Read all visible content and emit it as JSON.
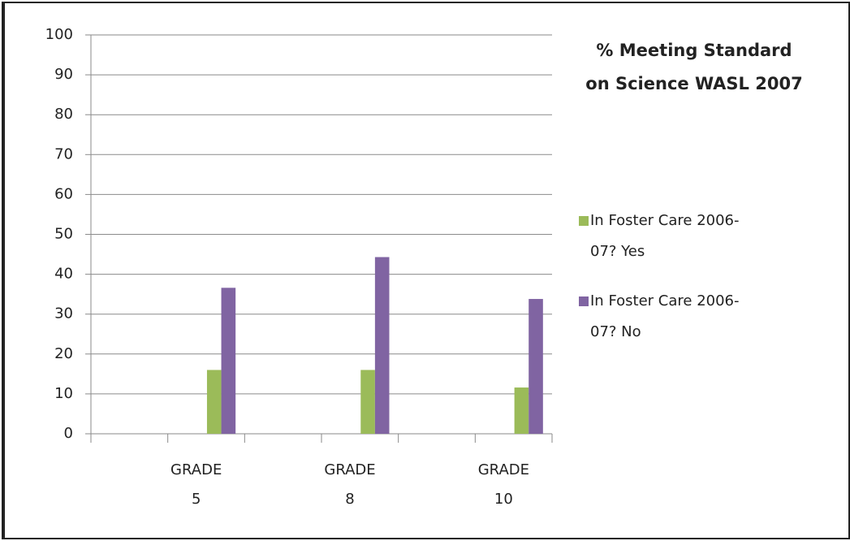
{
  "chart_data": {
    "type": "bar",
    "title": "% Meeting Standard on Science WASL 2007",
    "categories": [
      "GRADE 5",
      "GRADE 8",
      "GRADE 10"
    ],
    "series": [
      {
        "name": "In Foster Care 2006-07? Yes",
        "color": "#9bbb59",
        "values": [
          16,
          16,
          11.6
        ]
      },
      {
        "name": "In Foster Care 2006-07? No",
        "color": "#8064a2",
        "values": [
          36.6,
          44.3,
          33.8
        ]
      }
    ],
    "ylim": [
      0,
      100
    ],
    "yticks": [
      0,
      10,
      20,
      30,
      40,
      50,
      60,
      70,
      80,
      90,
      100
    ],
    "grid": true,
    "legend": "right"
  }
}
